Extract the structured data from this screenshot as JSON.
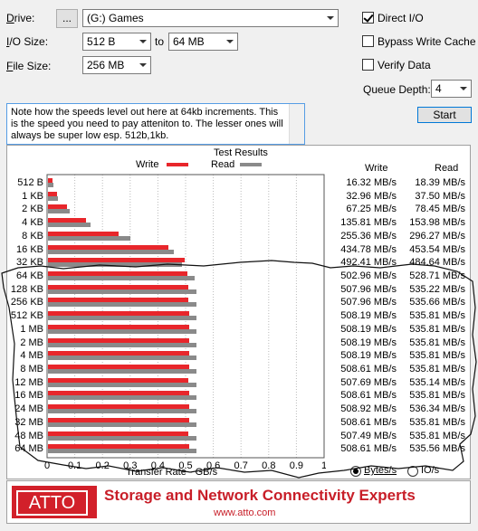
{
  "drive": {
    "label": "Drive:",
    "browse_label": "...",
    "value": "(G:) Games"
  },
  "io_size": {
    "label": "I/O Size:",
    "from": "512 B",
    "to_label": "to",
    "to": "64 MB"
  },
  "file_size": {
    "label": "File Size:",
    "value": "256 MB"
  },
  "options": {
    "direct_io": "Direct I/O",
    "direct_io_checked": true,
    "bypass_write_cache": "Bypass Write Cache",
    "bypass_checked": false,
    "verify_data": "Verify Data",
    "verify_checked": false
  },
  "queue_depth": {
    "label": "Queue Depth:",
    "value": "4"
  },
  "start_label": "Start",
  "note_text": "Note how the speeds level out here at 64kb increments.  This is the speed you need to pay atteniton to.  The lesser ones will always be super low esp. 512b,1kb.",
  "results": {
    "title": "Test Results",
    "legend_write": "Write",
    "legend_read": "Read",
    "col_write": "Write",
    "col_read": "Read",
    "xlabel": "Transfer Rate - GB/s",
    "colors": {
      "write": "#e8262b",
      "read": "#8a8a8a"
    }
  },
  "chart_data": {
    "type": "bar",
    "title": "Test Results",
    "xlabel": "Transfer Rate - GB/s",
    "xlim": [
      0,
      1
    ],
    "ticks": [
      "0",
      "0.1",
      "0.2",
      "0.3",
      "0.4",
      "0.5",
      "0.6",
      "0.7",
      "0.8",
      "0.9",
      "1"
    ],
    "categories": [
      "512 B",
      "1 KB",
      "2 KB",
      "4 KB",
      "8 KB",
      "16 KB",
      "32 KB",
      "64 KB",
      "128 KB",
      "256 KB",
      "512 KB",
      "1 MB",
      "2 MB",
      "4 MB",
      "8 MB",
      "12 MB",
      "16 MB",
      "24 MB",
      "32 MB",
      "48 MB",
      "64 MB"
    ],
    "series": [
      {
        "name": "Write",
        "values": [
          0.01632,
          0.03296,
          0.06725,
          0.13581,
          0.25536,
          0.43478,
          0.49241,
          0.50296,
          0.50796,
          0.50796,
          0.50819,
          0.50819,
          0.50819,
          0.50819,
          0.50861,
          0.50769,
          0.50861,
          0.50892,
          0.50861,
          0.50749,
          0.50861
        ],
        "labels": [
          "16.32 MB/s",
          "32.96 MB/s",
          "67.25 MB/s",
          "135.81 MB/s",
          "255.36 MB/s",
          "434.78 MB/s",
          "492.41 MB/s",
          "502.96 MB/s",
          "507.96 MB/s",
          "507.96 MB/s",
          "508.19 MB/s",
          "508.19 MB/s",
          "508.19 MB/s",
          "508.19 MB/s",
          "508.61 MB/s",
          "507.69 MB/s",
          "508.61 MB/s",
          "508.92 MB/s",
          "508.61 MB/s",
          "507.49 MB/s",
          "508.61 MB/s"
        ]
      },
      {
        "name": "Read",
        "values": [
          0.01839,
          0.0375,
          0.07845,
          0.15398,
          0.29627,
          0.45354,
          0.48464,
          0.52871,
          0.53522,
          0.53566,
          0.53581,
          0.53581,
          0.53581,
          0.53581,
          0.53581,
          0.53514,
          0.53581,
          0.53634,
          0.53581,
          0.53581,
          0.53556
        ],
        "labels": [
          "18.39 MB/s",
          "37.50 MB/s",
          "78.45 MB/s",
          "153.98 MB/s",
          "296.27 MB/s",
          "453.54 MB/s",
          "484.64 MB/s",
          "528.71 MB/s",
          "535.22 MB/s",
          "535.66 MB/s",
          "535.81 MB/s",
          "535.81 MB/s",
          "535.81 MB/s",
          "535.81 MB/s",
          "535.81 MB/s",
          "535.14 MB/s",
          "535.81 MB/s",
          "536.34 MB/s",
          "535.81 MB/s",
          "535.81 MB/s",
          "535.56 MB/s"
        ]
      }
    ]
  },
  "units": {
    "bytes": "Bytes/s",
    "io": "IO/s",
    "bytes_selected": true
  },
  "banner": {
    "logo": "ATTO",
    "tagline": "Storage and Network Connectivity Experts",
    "url": "www.atto.com"
  }
}
